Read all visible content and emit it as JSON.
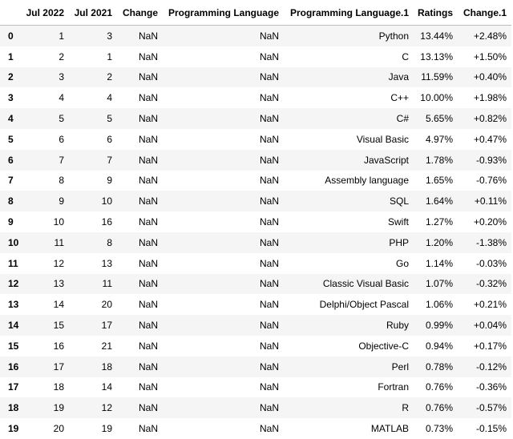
{
  "table": {
    "columns": [
      "",
      "Jul 2022",
      "Jul 2021",
      "Change",
      "Programming Language",
      "Programming Language.1",
      "Ratings",
      "Change.1"
    ],
    "rows": [
      [
        0,
        1,
        3,
        "NaN",
        "NaN",
        "Python",
        "13.44%",
        "+2.48%"
      ],
      [
        1,
        2,
        1,
        "NaN",
        "NaN",
        "C",
        "13.13%",
        "+1.50%"
      ],
      [
        2,
        3,
        2,
        "NaN",
        "NaN",
        "Java",
        "11.59%",
        "+0.40%"
      ],
      [
        3,
        4,
        4,
        "NaN",
        "NaN",
        "C++",
        "10.00%",
        "+1.98%"
      ],
      [
        4,
        5,
        5,
        "NaN",
        "NaN",
        "C#",
        "5.65%",
        "+0.82%"
      ],
      [
        5,
        6,
        6,
        "NaN",
        "NaN",
        "Visual Basic",
        "4.97%",
        "+0.47%"
      ],
      [
        6,
        7,
        7,
        "NaN",
        "NaN",
        "JavaScript",
        "1.78%",
        "-0.93%"
      ],
      [
        7,
        8,
        9,
        "NaN",
        "NaN",
        "Assembly language",
        "1.65%",
        "-0.76%"
      ],
      [
        8,
        9,
        10,
        "NaN",
        "NaN",
        "SQL",
        "1.64%",
        "+0.11%"
      ],
      [
        9,
        10,
        16,
        "NaN",
        "NaN",
        "Swift",
        "1.27%",
        "+0.20%"
      ],
      [
        10,
        11,
        8,
        "NaN",
        "NaN",
        "PHP",
        "1.20%",
        "-1.38%"
      ],
      [
        11,
        12,
        13,
        "NaN",
        "NaN",
        "Go",
        "1.14%",
        "-0.03%"
      ],
      [
        12,
        13,
        11,
        "NaN",
        "NaN",
        "Classic Visual Basic",
        "1.07%",
        "-0.32%"
      ],
      [
        13,
        14,
        20,
        "NaN",
        "NaN",
        "Delphi/Object Pascal",
        "1.06%",
        "+0.21%"
      ],
      [
        14,
        15,
        17,
        "NaN",
        "NaN",
        "Ruby",
        "0.99%",
        "+0.04%"
      ],
      [
        15,
        16,
        21,
        "NaN",
        "NaN",
        "Objective-C",
        "0.94%",
        "+0.17%"
      ],
      [
        16,
        17,
        18,
        "NaN",
        "NaN",
        "Perl",
        "0.78%",
        "-0.12%"
      ],
      [
        17,
        18,
        14,
        "NaN",
        "NaN",
        "Fortran",
        "0.76%",
        "-0.36%"
      ],
      [
        18,
        19,
        12,
        "NaN",
        "NaN",
        "R",
        "0.76%",
        "-0.57%"
      ],
      [
        19,
        20,
        19,
        "NaN",
        "NaN",
        "MATLAB",
        "0.73%",
        "-0.15%"
      ]
    ]
  }
}
